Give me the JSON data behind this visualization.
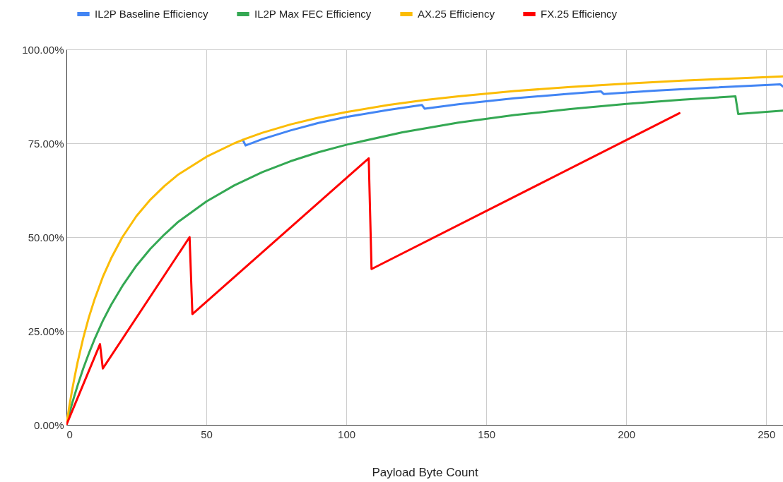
{
  "chart_data": {
    "type": "line",
    "xlabel": "Payload Byte Count",
    "series": [
      {
        "name": "IL2P Baseline Efficiency",
        "color": "#4285f4",
        "x": [
          63,
          64,
          70,
          80,
          90,
          100,
          115,
          127,
          128,
          140,
          160,
          180,
          191,
          192,
          210,
          230,
          255,
          256
        ],
        "values": [
          75.9,
          74.4,
          76.1,
          78.4,
          80.4,
          82.0,
          83.9,
          85.2,
          84.2,
          85.4,
          87.0,
          88.2,
          88.8,
          88.1,
          89.0,
          89.8,
          90.7,
          90.1
        ]
      },
      {
        "name": "IL2P Max FEC Efficiency",
        "color": "#34a853",
        "x": [
          0,
          1,
          2,
          3,
          4,
          6,
          8,
          10,
          13,
          16,
          20,
          25,
          30,
          35,
          40,
          50,
          60,
          70,
          80,
          90,
          100,
          120,
          140,
          160,
          180,
          200,
          220,
          239,
          240,
          256
        ],
        "values": [
          0,
          2.9,
          5.6,
          8.1,
          10.5,
          15.0,
          19.0,
          22.7,
          27.7,
          32.0,
          37.0,
          42.4,
          46.9,
          50.7,
          54.1,
          59.5,
          63.8,
          67.3,
          70.2,
          72.6,
          74.6,
          77.9,
          80.5,
          82.5,
          84.1,
          85.5,
          86.6,
          87.5,
          82.8,
          83.7
        ]
      },
      {
        "name": "AX.25 Efficiency",
        "color": "#fbbc04",
        "x": [
          0,
          1,
          2,
          3,
          4,
          6,
          8,
          10,
          13,
          16,
          20,
          25,
          30,
          35,
          40,
          50,
          60,
          64,
          70,
          80,
          90,
          100,
          115,
          128,
          140,
          160,
          180,
          200,
          220,
          240,
          256
        ],
        "values": [
          0,
          4.8,
          9.1,
          13.0,
          16.7,
          23.1,
          28.6,
          33.3,
          39.4,
          44.4,
          50.0,
          55.6,
          60.0,
          63.6,
          66.7,
          71.4,
          75.0,
          76.2,
          77.8,
          80.0,
          81.8,
          83.3,
          85.2,
          86.5,
          87.5,
          88.9,
          90.0,
          90.9,
          91.7,
          92.3,
          92.8
        ]
      },
      {
        "name": "FX.25 Efficiency",
        "color": "#ff0000",
        "x": [
          0,
          12,
          13,
          44,
          45,
          108,
          109,
          219
        ],
        "values": [
          0,
          21.5,
          15.0,
          50.0,
          29.5,
          71.0,
          41.5,
          83.0
        ]
      }
    ],
    "xlim": [
      0,
      256
    ],
    "xticks": [
      0,
      50,
      100,
      150,
      200,
      250
    ],
    "ylim": [
      0,
      100
    ],
    "yticks": [
      {
        "value": 0,
        "label": "0.00%"
      },
      {
        "value": 25,
        "label": "25.00%"
      },
      {
        "value": 50,
        "label": "50.00%"
      },
      {
        "value": 75,
        "label": "75.00%"
      },
      {
        "value": 100,
        "label": "100.00%"
      }
    ],
    "grid": true,
    "legend": "top",
    "marker": "none",
    "line_style": "solid"
  }
}
